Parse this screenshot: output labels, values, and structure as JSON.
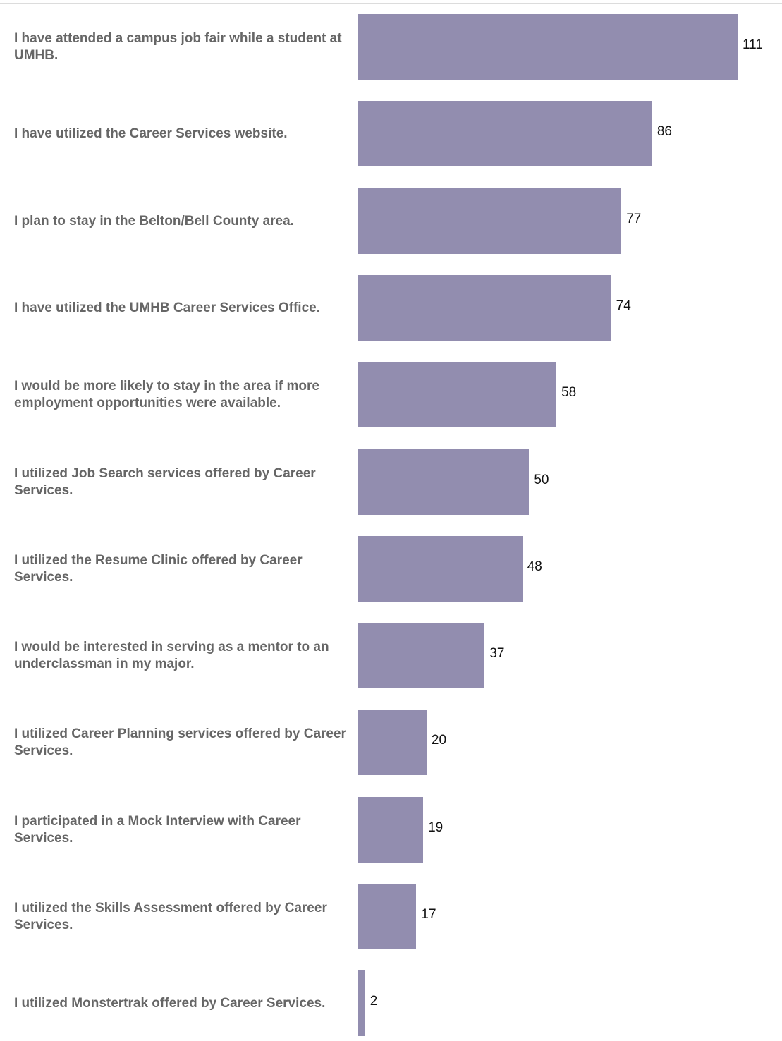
{
  "chart_data": {
    "type": "bar",
    "orientation": "horizontal",
    "categories": [
      "I have attended a campus job fair while a student at UMHB.",
      "I have utilized the Career Services website.",
      "I plan to stay in the Belton/Bell County area.",
      "I have utilized the UMHB Career Services Office.",
      "I would be more likely to stay in the area if more employment opportunities were available.",
      "I utilized Job Search services offered by Career Services.",
      "I utilized the Resume Clinic offered by Career Services.",
      "I would be interested in serving as a mentor to an underclassman in my major.",
      "I utilized Career Planning services offered by Career Services.",
      "I participated in a Mock Interview with Career Services.",
      "I utilized the Skills Assessment offered by Career Services.",
      "I utilized Monstertrak offered by Career Services."
    ],
    "values": [
      111,
      86,
      77,
      74,
      58,
      50,
      48,
      37,
      20,
      19,
      17,
      2
    ],
    "xlim": [
      0,
      111
    ],
    "grid": false,
    "bar_color": "#928daf",
    "label_color": "#666666",
    "value_label_color": "#111111"
  }
}
